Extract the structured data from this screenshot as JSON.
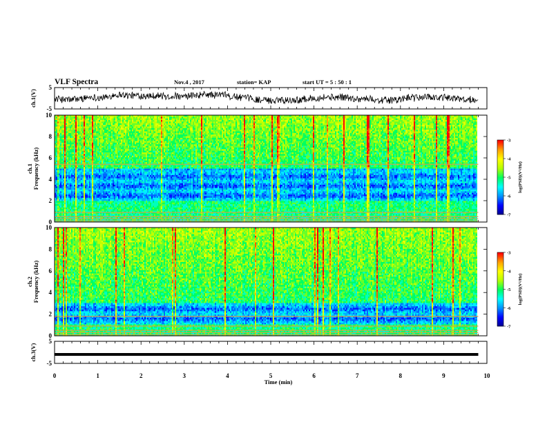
{
  "header": {
    "title": "VLF Spectra",
    "date": "Nov.4 , 2017",
    "station": "station= KAP",
    "start": "start UT = 5 : 50 : 1"
  },
  "colors": {
    "axis": "#000000",
    "waveform": "#000000",
    "colormap": [
      "#00008c",
      "#0000ff",
      "#0090ff",
      "#00ffff",
      "#00ff60",
      "#b4ff00",
      "#ffff00",
      "#ffa000",
      "#ff0000",
      "#ffffff"
    ]
  },
  "chart_data": [
    {
      "type": "line",
      "ylabel": "ch.1(V)",
      "ylim": [
        -5,
        5
      ],
      "y_ticks": [
        "5",
        "-5"
      ],
      "x_range_min": [
        0,
        9.8
      ],
      "level_approx": 0
    },
    {
      "type": "heatmap",
      "ylabel": "ch.1\nFrequency (kHz)",
      "ylim": [
        0,
        10
      ],
      "y_ticks": [
        "0",
        "2",
        "4",
        "6",
        "8",
        "10"
      ],
      "colorbar": {
        "label": "log(PSD)(V²/Hz)",
        "range": [
          -7,
          -3
        ],
        "ticks": [
          "-3",
          "-4",
          "-5",
          "-6",
          "-7"
        ]
      },
      "features_approx": {
        "strong_line_kHz": [
          0.1,
          0.3,
          0.5,
          0.9,
          5.4
        ],
        "low_band_kHz": [
          2,
          5
        ]
      }
    },
    {
      "type": "heatmap",
      "ylabel": "ch.2\nFrequency (kHz)",
      "ylim": [
        0,
        10
      ],
      "y_ticks": [
        "0",
        "2",
        "4",
        "6",
        "8",
        "10"
      ],
      "colorbar": {
        "label": "log(PSD)(V²/Hz)",
        "range": [
          -7,
          -3
        ],
        "ticks": [
          "-3",
          "-4",
          "-5",
          "-6",
          "-7"
        ]
      },
      "features_approx": {
        "strong_line_kHz": [
          0.1,
          0.3,
          0.5,
          0.9,
          1.8
        ],
        "low_band_kHz": [
          1,
          3
        ]
      }
    },
    {
      "type": "line",
      "ylabel": "ch.3(V)",
      "ylim": [
        -5,
        5
      ],
      "y_ticks": [
        "5",
        "-5"
      ],
      "constant_value_approx": 0
    }
  ],
  "x_axis": {
    "label": "Time (min)",
    "range": [
      0,
      10
    ],
    "ticks": [
      "0",
      "1",
      "2",
      "3",
      "4",
      "5",
      "6",
      "7",
      "8",
      "9",
      "10"
    ],
    "data_end_min": 9.8
  }
}
